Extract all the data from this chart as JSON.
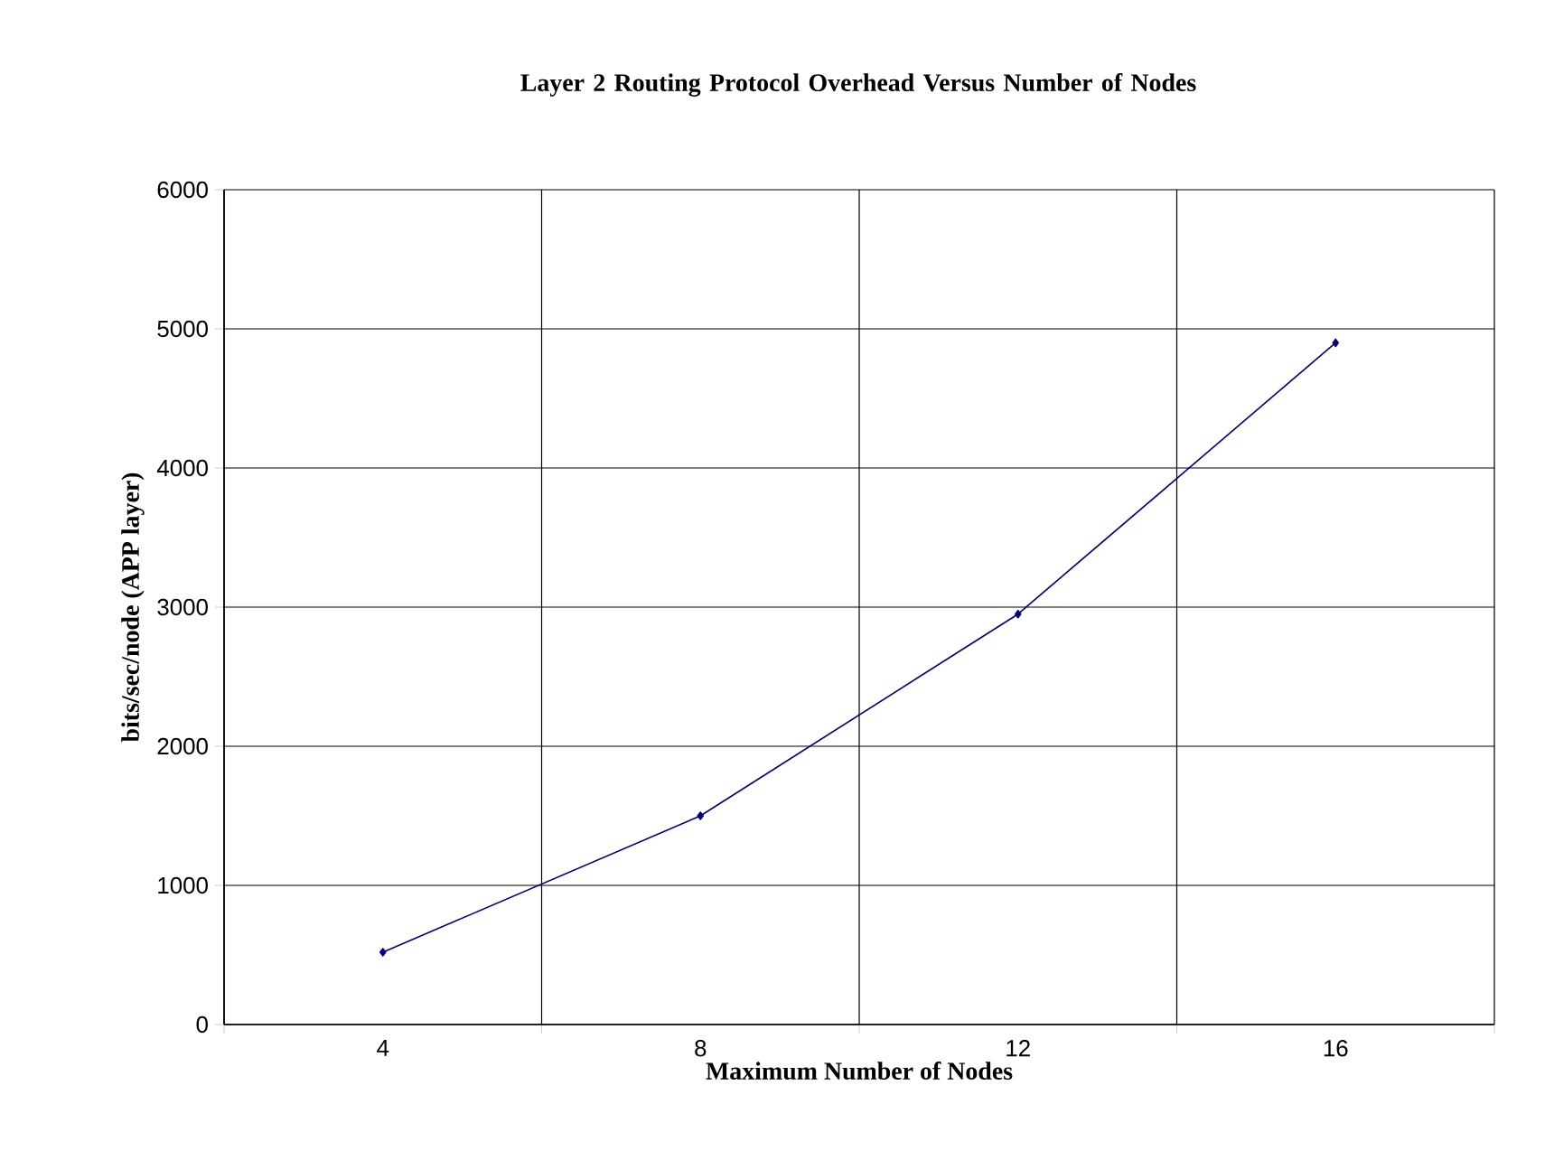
{
  "chart_data": {
    "type": "line",
    "title": "Layer 2 Routing Protocol Overhead Versus Number of Nodes",
    "xlabel": "Maximum Number of Nodes",
    "ylabel": "bits/sec/node (APP layer)",
    "categories": [
      "4",
      "8",
      "12",
      "16"
    ],
    "series": [
      {
        "color": "#000080",
        "values": [
          520,
          1500,
          2950,
          4900
        ]
      }
    ],
    "ylim": [
      0,
      6000
    ],
    "yticks": [
      0,
      1000,
      2000,
      3000,
      4000,
      5000,
      6000
    ],
    "grid": true,
    "marker": "diamond",
    "line_style": "solid"
  }
}
